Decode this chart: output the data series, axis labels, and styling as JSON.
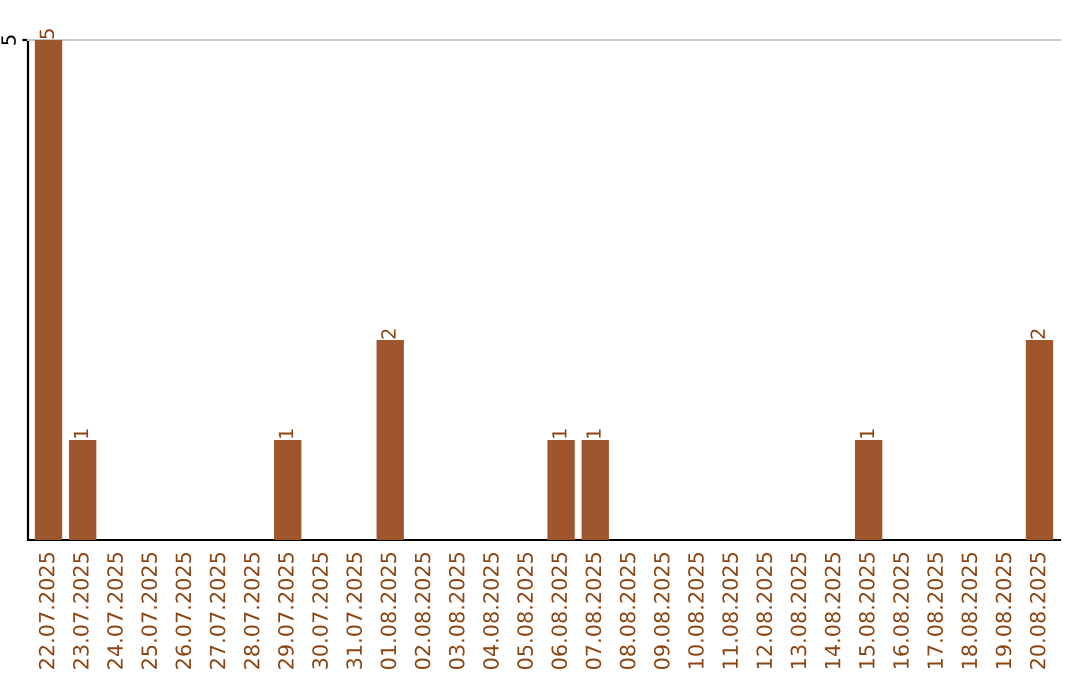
{
  "chart_data": {
    "type": "bar",
    "categories": [
      "22.07.2025",
      "23.07.2025",
      "24.07.2025",
      "25.07.2025",
      "26.07.2025",
      "27.07.2025",
      "28.07.2025",
      "29.07.2025",
      "30.07.2025",
      "31.07.2025",
      "01.08.2025",
      "02.08.2025",
      "03.08.2025",
      "04.08.2025",
      "05.08.2025",
      "06.08.2025",
      "07.08.2025",
      "08.08.2025",
      "09.08.2025",
      "10.08.2025",
      "11.08.2025",
      "12.08.2025",
      "13.08.2025",
      "14.08.2025",
      "15.08.2025",
      "16.08.2025",
      "17.08.2025",
      "18.08.2025",
      "19.08.2025",
      "20.08.2025"
    ],
    "values": [
      5,
      1,
      0,
      0,
      0,
      0,
      0,
      1,
      0,
      0,
      2,
      0,
      0,
      0,
      0,
      1,
      1,
      0,
      0,
      0,
      0,
      0,
      0,
      0,
      1,
      0,
      0,
      0,
      0,
      2
    ],
    "value_labels": [
      "5",
      "1",
      null,
      null,
      null,
      null,
      null,
      "1",
      null,
      null,
      "2",
      null,
      null,
      null,
      null,
      "1",
      "1",
      null,
      null,
      null,
      null,
      null,
      null,
      null,
      "1",
      null,
      null,
      null,
      null,
      "2"
    ],
    "color": "#a0562c",
    "ylim": [
      0,
      5
    ],
    "yticks": [
      5
    ]
  }
}
